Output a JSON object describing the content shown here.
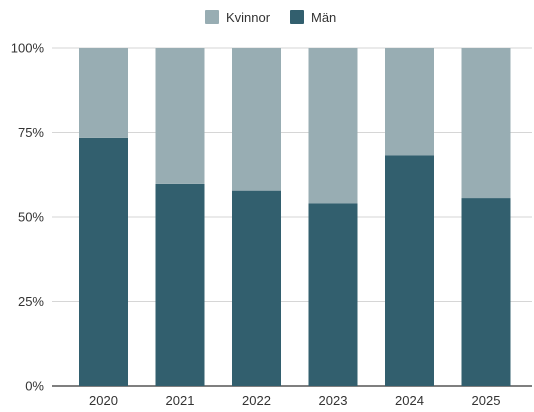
{
  "chart_data": {
    "type": "bar",
    "stacked": "percent",
    "categories": [
      "2020",
      "2021",
      "2022",
      "2023",
      "2024",
      "2025"
    ],
    "series": [
      {
        "name": "Män",
        "color": "#325f6e",
        "values": [
          73.4,
          59.8,
          57.8,
          54.0,
          68.2,
          55.6
        ]
      },
      {
        "name": "Kvinnor",
        "color": "#98adb3",
        "values": [
          26.6,
          40.2,
          42.2,
          46.0,
          31.8,
          44.4
        ]
      }
    ],
    "legend_order": [
      "Kvinnor",
      "Män"
    ],
    "legend_position": "top",
    "ylim": [
      0,
      100
    ],
    "yticks": [
      "0%",
      "25%",
      "50%",
      "75%",
      "100%"
    ],
    "ytick_values": [
      0,
      25,
      50,
      75,
      100
    ],
    "grid": true
  }
}
